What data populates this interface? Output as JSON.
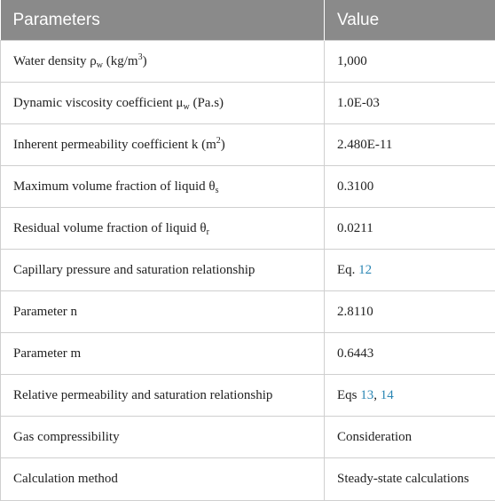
{
  "table": {
    "header": {
      "param": "Parameters",
      "value": "Value"
    },
    "rows": [
      {
        "label": "Water density ρ",
        "sub": "w",
        "unit_pre": " (kg/m",
        "unit_sup": "3",
        "unit_post": ")",
        "value": "1,000"
      },
      {
        "label": "Dynamic viscosity coefficient μ",
        "sub": "w",
        "tail": " (Pa.s)",
        "value": "1.0E-03"
      },
      {
        "label": "Inherent permeability coefficient k (m",
        "sup": "2",
        "tail": ")",
        "value": "2.480E-11"
      },
      {
        "label": "Maximum volume fraction of liquid θ",
        "sub": "s",
        "value": "0.3100"
      },
      {
        "label": "Residual volume fraction of liquid θ",
        "sub": "r",
        "value": "0.0211"
      },
      {
        "label": "Capillary pressure and saturation relationship",
        "value_prefix": "Eq. ",
        "value_link": "12"
      },
      {
        "label": "Parameter n",
        "value": "2.8110"
      },
      {
        "label": "Parameter m",
        "value": "0.6443"
      },
      {
        "label": "Relative permeability and saturation relationship",
        "value_prefix": "Eqs ",
        "value_link1": "13",
        "value_sep": ", ",
        "value_link2": "14"
      },
      {
        "label": "Gas compressibility",
        "value": "Consideration"
      },
      {
        "label": "Calculation method",
        "value": "Steady-state calculations"
      }
    ]
  },
  "colors": {
    "header_bg": "#8a8a8a",
    "link": "#2a86b4",
    "border": "#cfcfcf"
  }
}
